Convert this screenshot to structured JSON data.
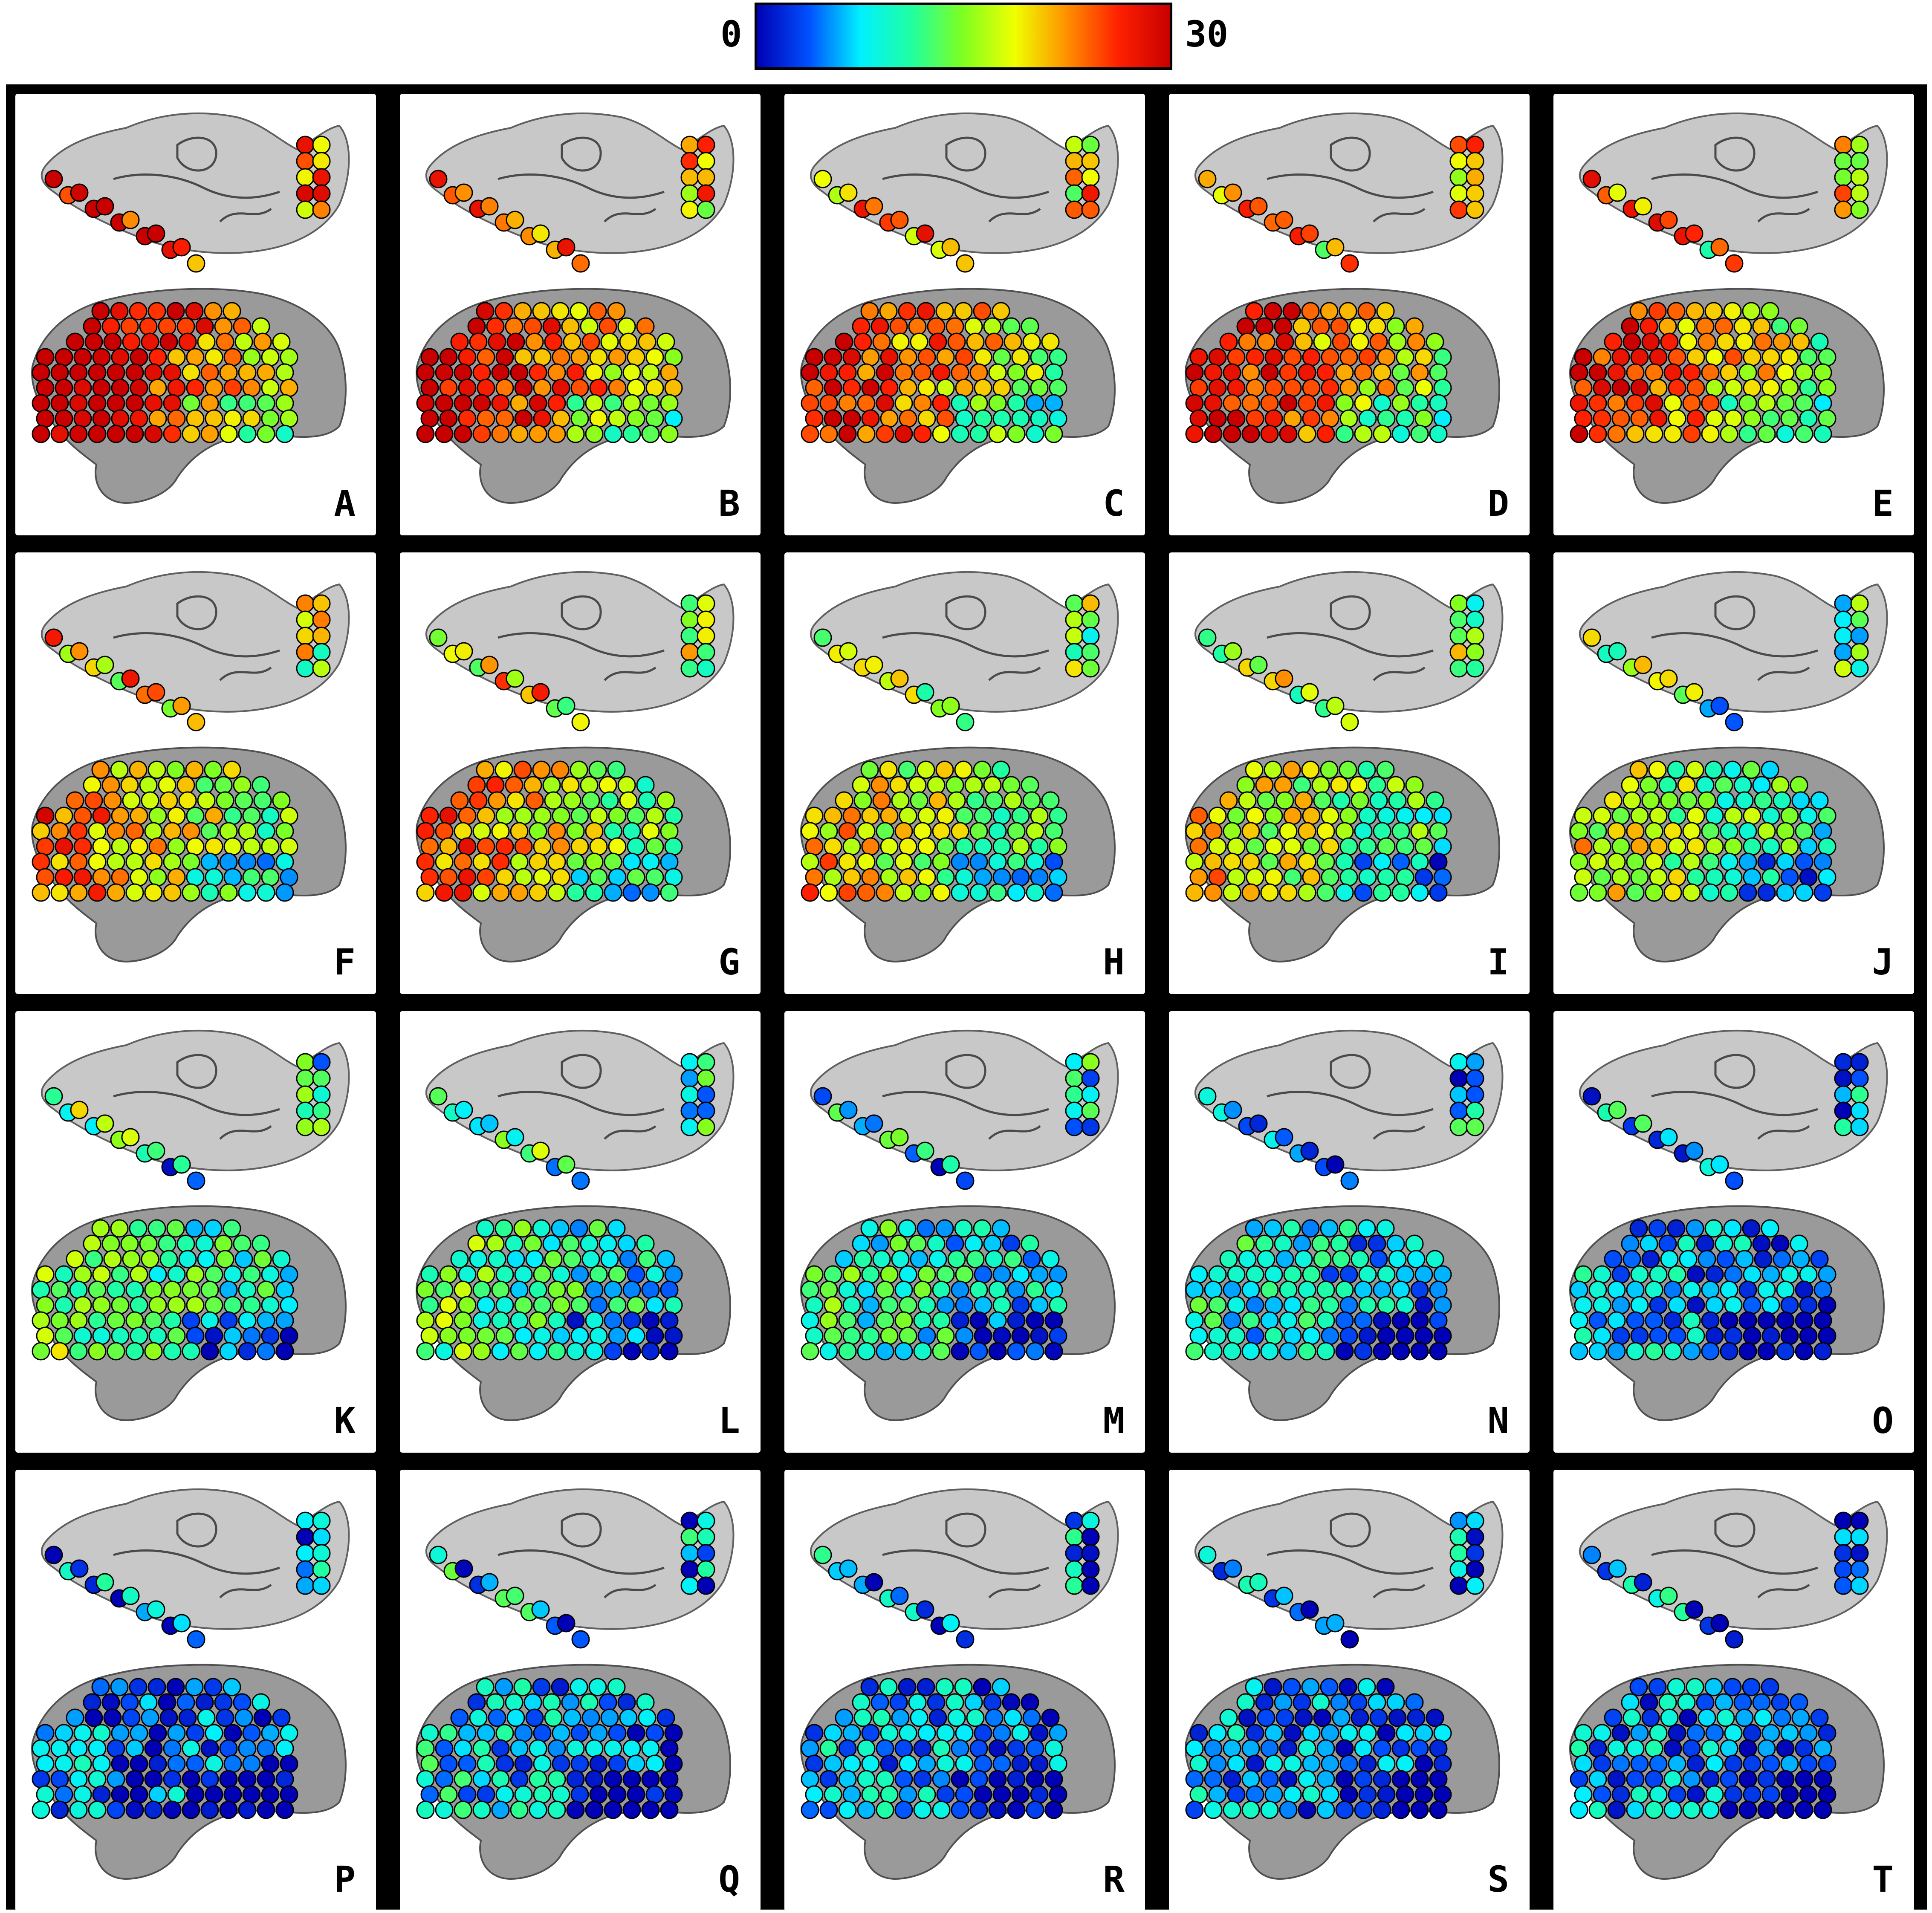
{
  "colorbar": {
    "min_label": "0",
    "max_label": "30",
    "colors": [
      "#0000b4",
      "#0050ff",
      "#00f0ff",
      "#20ffa0",
      "#80ff20",
      "#f0ff00",
      "#ff9000",
      "#ff2000",
      "#c80000"
    ]
  },
  "panels": [
    {
      "letter": "A",
      "level": 0.92
    },
    {
      "letter": "B",
      "level": 0.84
    },
    {
      "letter": "C",
      "level": 0.78
    },
    {
      "letter": "D",
      "level": 0.82
    },
    {
      "letter": "E",
      "level": 0.75
    },
    {
      "letter": "F",
      "level": 0.68
    },
    {
      "letter": "G",
      "level": 0.66
    },
    {
      "letter": "H",
      "level": 0.58
    },
    {
      "letter": "I",
      "level": 0.56
    },
    {
      "letter": "J",
      "level": 0.5
    },
    {
      "letter": "K",
      "level": 0.42
    },
    {
      "letter": "L",
      "level": 0.38
    },
    {
      "letter": "M",
      "level": 0.33
    },
    {
      "letter": "N",
      "level": 0.27
    },
    {
      "letter": "O",
      "level": 0.2
    },
    {
      "letter": "P",
      "level": 0.15
    },
    {
      "letter": "Q",
      "level": 0.22
    },
    {
      "letter": "R",
      "level": 0.18
    },
    {
      "letter": "S",
      "level": 0.16
    },
    {
      "letter": "T",
      "level": 0.17
    }
  ]
}
